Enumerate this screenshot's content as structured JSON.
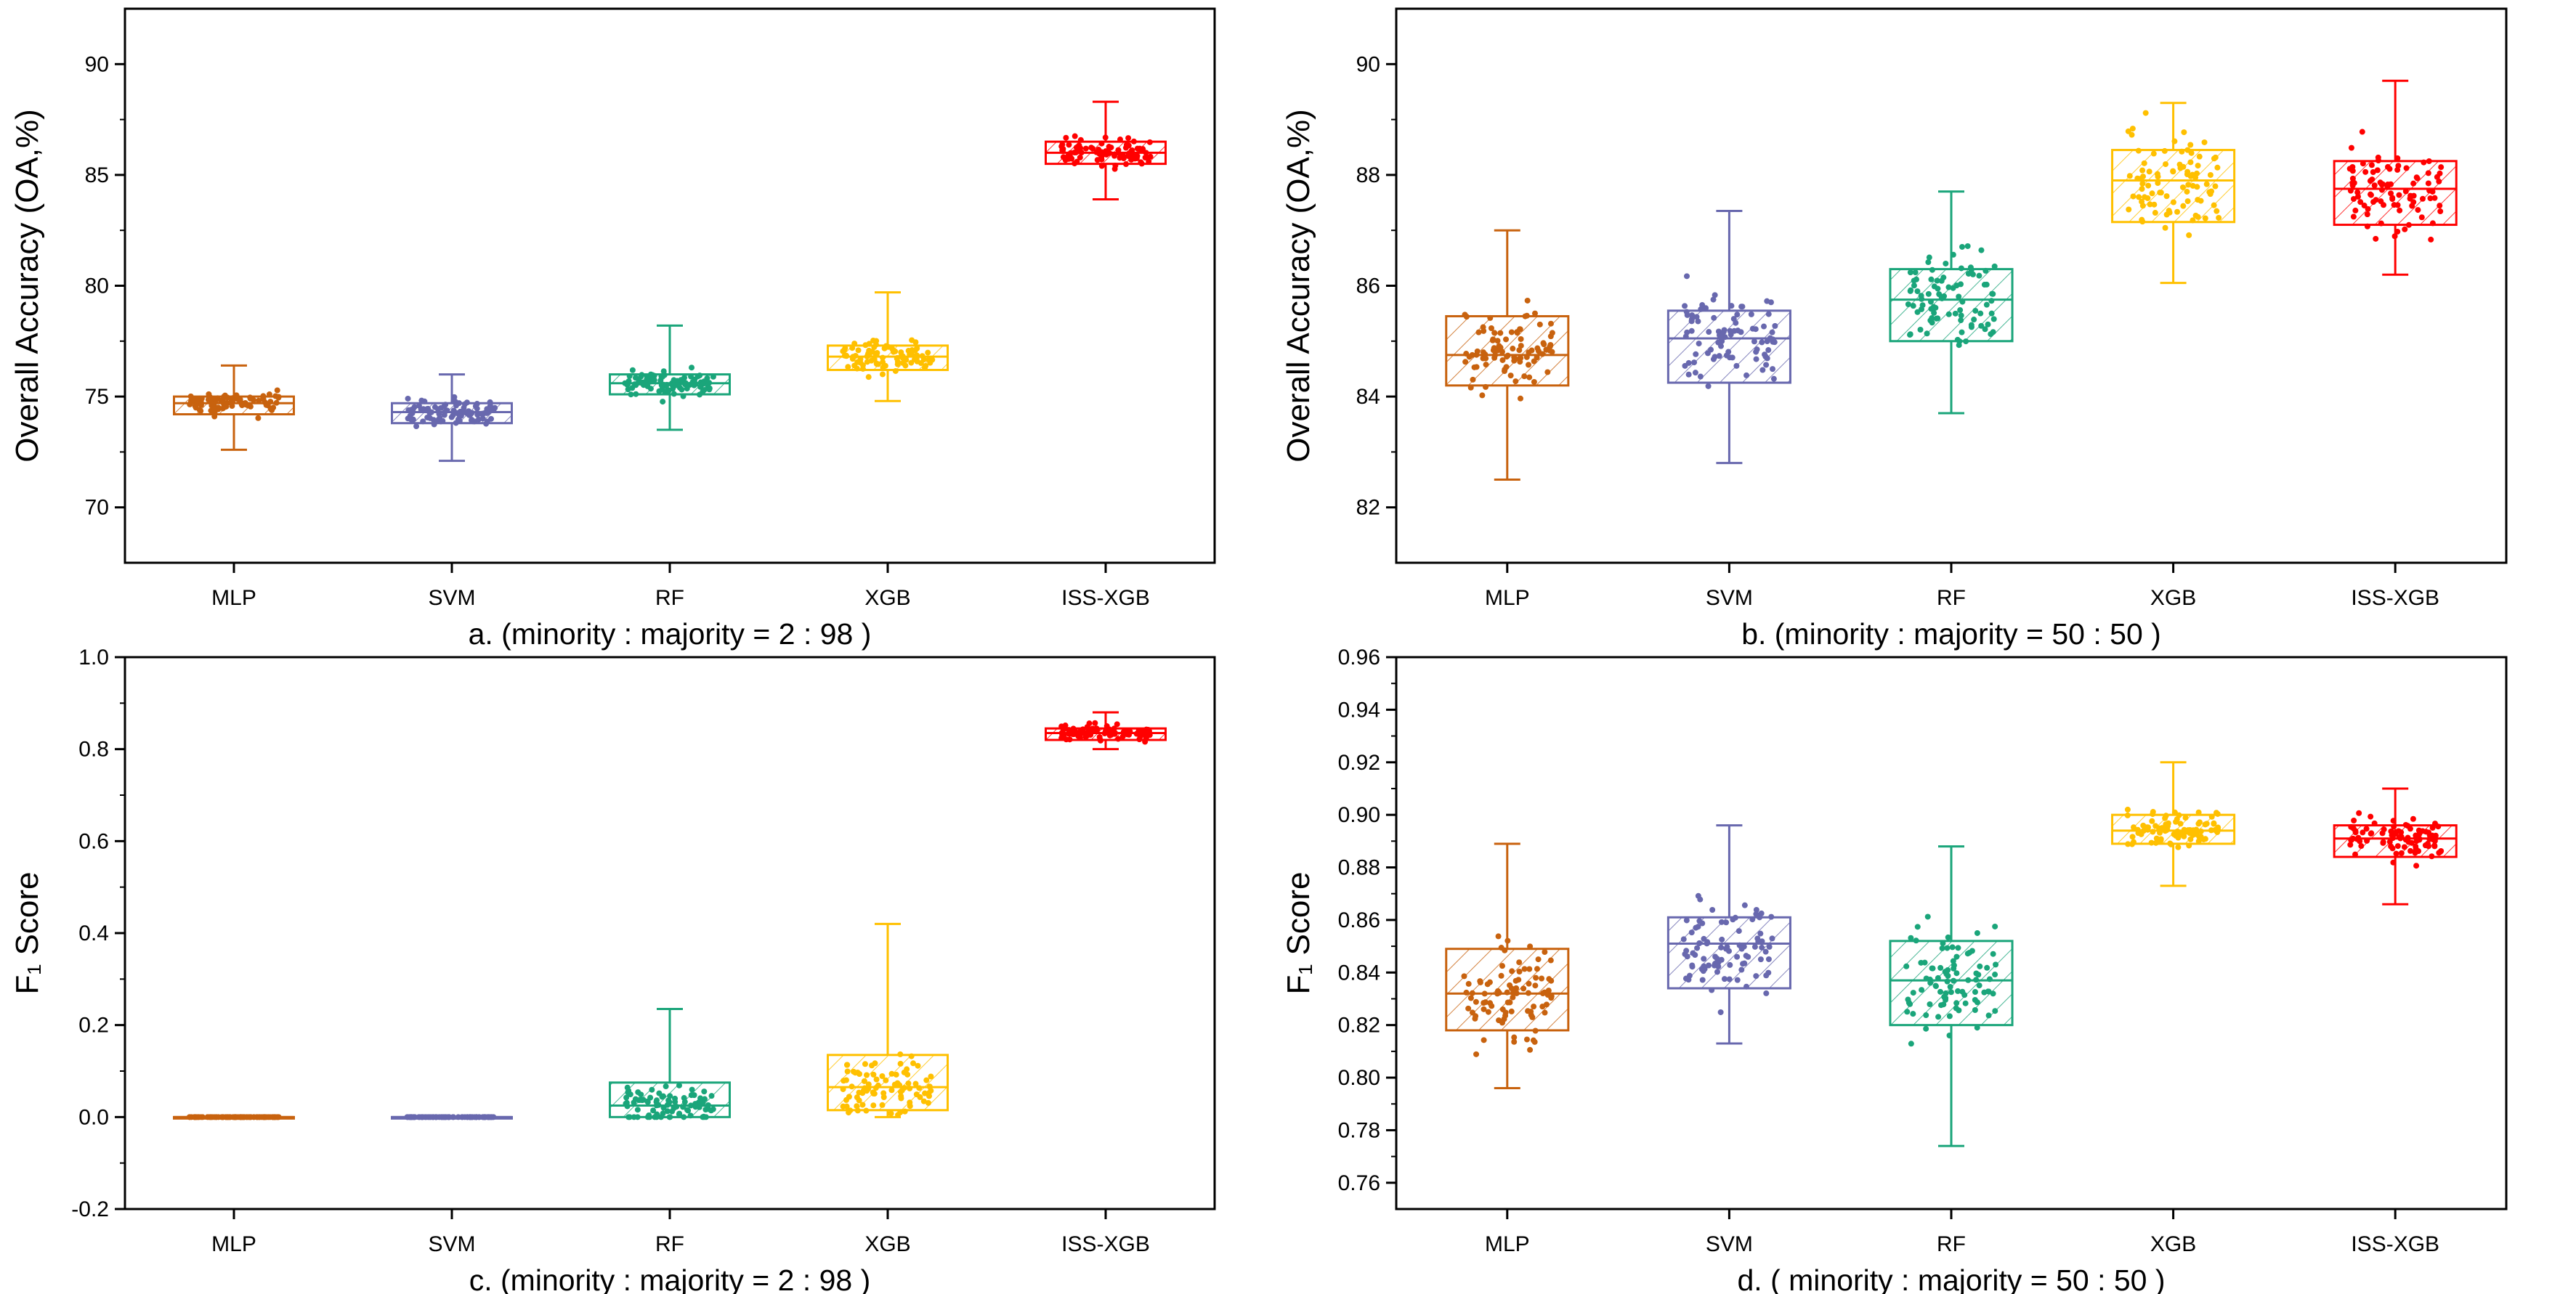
{
  "chart_data": [
    {
      "type": "box",
      "panel": "a",
      "caption": "a. (minority : majority = 2 : 98 )",
      "ylabel": "Overall Accuracy (OA,%)",
      "ylim": [
        67.5,
        92.5
      ],
      "yticks": [
        70,
        75,
        80,
        85,
        90
      ],
      "ytick_labels": [
        "70",
        "75",
        "80",
        "85",
        "90"
      ],
      "categories": [
        "MLP",
        "SVM",
        "RF",
        "XGB",
        "ISS-XGB"
      ],
      "colors": [
        "#c8620e",
        "#6868ae",
        "#1aa57a",
        "#ffc000",
        "#ff0000"
      ],
      "series": [
        {
          "name": "MLP",
          "q1": 74.2,
          "median": 74.7,
          "q3": 75.0,
          "min": 72.6,
          "max": 76.4,
          "n": 90
        },
        {
          "name": "SVM",
          "q1": 73.8,
          "median": 74.3,
          "q3": 74.7,
          "min": 72.1,
          "max": 76.0,
          "n": 90
        },
        {
          "name": "RF",
          "q1": 75.1,
          "median": 75.6,
          "q3": 76.0,
          "min": 73.5,
          "max": 78.2,
          "n": 90
        },
        {
          "name": "XGB",
          "q1": 76.2,
          "median": 76.8,
          "q3": 77.3,
          "min": 74.8,
          "max": 79.7,
          "n": 90
        },
        {
          "name": "ISS-XGB",
          "q1": 85.5,
          "median": 86.0,
          "q3": 86.5,
          "min": 83.9,
          "max": 88.3,
          "n": 90
        }
      ]
    },
    {
      "type": "box",
      "panel": "b",
      "caption": "b. (minority : majority = 50 : 50 )",
      "ylabel": "Overall Accuracy (OA,%)",
      "ylim": [
        81.0,
        91.0
      ],
      "yticks": [
        82,
        84,
        86,
        88,
        90
      ],
      "ytick_labels": [
        "82",
        "84",
        "86",
        "88",
        "90"
      ],
      "categories": [
        "MLP",
        "SVM",
        "RF",
        "XGB",
        "ISS-XGB"
      ],
      "colors": [
        "#c8620e",
        "#6868ae",
        "#1aa57a",
        "#ffc000",
        "#ff0000"
      ],
      "series": [
        {
          "name": "MLP",
          "q1": 84.2,
          "median": 84.75,
          "q3": 85.45,
          "min": 82.5,
          "max": 87.0,
          "n": 90
        },
        {
          "name": "SVM",
          "q1": 84.25,
          "median": 85.05,
          "q3": 85.55,
          "min": 82.8,
          "max": 87.35,
          "n": 90
        },
        {
          "name": "RF",
          "q1": 85.0,
          "median": 85.75,
          "q3": 86.3,
          "min": 83.7,
          "max": 87.7,
          "n": 90
        },
        {
          "name": "XGB",
          "q1": 87.15,
          "median": 87.9,
          "q3": 88.45,
          "min": 86.05,
          "max": 89.3,
          "n": 90
        },
        {
          "name": "ISS-XGB",
          "q1": 87.1,
          "median": 87.75,
          "q3": 88.25,
          "min": 86.2,
          "max": 89.7,
          "n": 90
        }
      ]
    },
    {
      "type": "box",
      "panel": "c",
      "caption": "c. (minority : majority = 2 : 98 )",
      "ylabel": "F₁ Score",
      "ylim": [
        -0.2,
        1.0
      ],
      "yticks": [
        -0.2,
        0.0,
        0.2,
        0.4,
        0.6,
        0.8,
        1.0
      ],
      "ytick_labels": [
        "-0.2",
        "0.0",
        "0.2",
        "0.4",
        "0.6",
        "0.8",
        "1.0"
      ],
      "categories": [
        "MLP",
        "SVM",
        "RF",
        "XGB",
        "ISS-XGB"
      ],
      "colors": [
        "#c8620e",
        "#6868ae",
        "#1aa57a",
        "#ffc000",
        "#ff0000"
      ],
      "series": [
        {
          "name": "MLP",
          "q1": 0.0,
          "median": 0.0,
          "q3": 0.0,
          "min": 0.0,
          "max": 0.0,
          "n": 90
        },
        {
          "name": "SVM",
          "q1": 0.0,
          "median": 0.0,
          "q3": 0.0,
          "min": 0.0,
          "max": 0.0,
          "n": 90
        },
        {
          "name": "RF",
          "q1": 0.0,
          "median": 0.025,
          "q3": 0.075,
          "min": 0.0,
          "max": 0.235,
          "n": 90
        },
        {
          "name": "XGB",
          "q1": 0.015,
          "median": 0.065,
          "q3": 0.135,
          "min": 0.0,
          "max": 0.42,
          "n": 90
        },
        {
          "name": "ISS-XGB",
          "q1": 0.82,
          "median": 0.835,
          "q3": 0.845,
          "min": 0.8,
          "max": 0.88,
          "n": 90
        }
      ]
    },
    {
      "type": "box",
      "panel": "d",
      "caption": "d. ( minority : majority = 50 : 50 )",
      "ylabel": "F₁ Score",
      "ylim": [
        0.75,
        0.96
      ],
      "yticks": [
        0.76,
        0.78,
        0.8,
        0.82,
        0.84,
        0.86,
        0.88,
        0.9,
        0.92,
        0.94,
        0.96
      ],
      "ytick_labels": [
        "0.76",
        "0.78",
        "0.80",
        "0.82",
        "0.84",
        "0.86",
        "0.88",
        "0.90",
        "0.92",
        "0.94",
        "0.96"
      ],
      "categories": [
        "MLP",
        "SVM",
        "RF",
        "XGB",
        "ISS-XGB"
      ],
      "colors": [
        "#c8620e",
        "#6868ae",
        "#1aa57a",
        "#ffc000",
        "#ff0000"
      ],
      "series": [
        {
          "name": "MLP",
          "q1": 0.818,
          "median": 0.832,
          "q3": 0.849,
          "min": 0.796,
          "max": 0.889,
          "n": 90
        },
        {
          "name": "SVM",
          "q1": 0.834,
          "median": 0.851,
          "q3": 0.861,
          "min": 0.813,
          "max": 0.896,
          "n": 90
        },
        {
          "name": "RF",
          "q1": 0.82,
          "median": 0.837,
          "q3": 0.852,
          "min": 0.774,
          "max": 0.888,
          "n": 90
        },
        {
          "name": "XGB",
          "q1": 0.889,
          "median": 0.894,
          "q3": 0.9,
          "min": 0.873,
          "max": 0.92,
          "n": 90
        },
        {
          "name": "ISS-XGB",
          "q1": 0.884,
          "median": 0.891,
          "q3": 0.896,
          "min": 0.866,
          "max": 0.91,
          "n": 90
        }
      ]
    }
  ]
}
